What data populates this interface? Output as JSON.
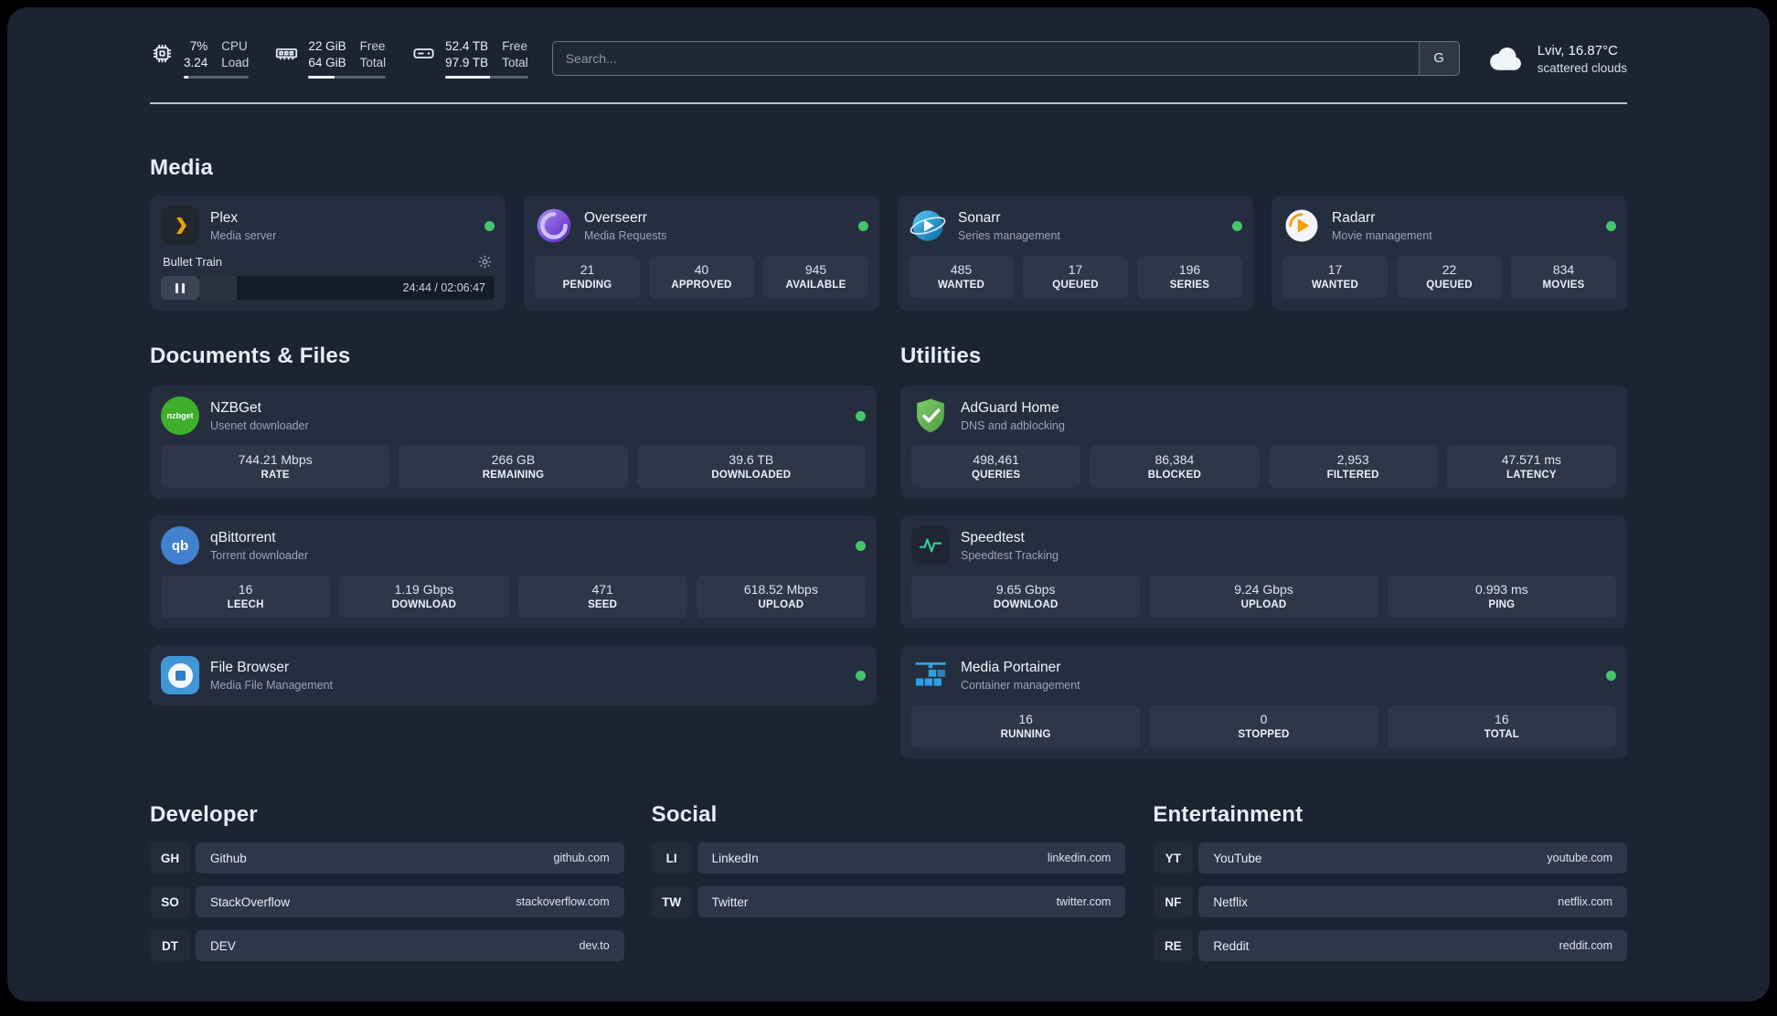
{
  "header": {
    "cpu": {
      "value_top": "7%",
      "value_bottom": "3.24",
      "label_top": "CPU",
      "label_bottom": "Load",
      "bar_percent": 7
    },
    "ram": {
      "value_top": "22 GiB",
      "value_bottom": "64 GiB",
      "label_top": "Free",
      "label_bottom": "Total",
      "bar_percent": 34
    },
    "disk": {
      "value_top": "52.4 TB",
      "value_bottom": "97.9 TB",
      "label_top": "Free",
      "label_bottom": "Total",
      "bar_percent": 54
    },
    "search": {
      "placeholder": "Search...",
      "provider": "G"
    },
    "weather": {
      "location": "Lviv, 16.87°C",
      "condition": "scattered clouds"
    }
  },
  "media": {
    "title": "Media",
    "plex": {
      "name": "Plex",
      "subtitle": "Media server",
      "player": {
        "track": "Bullet Train",
        "time": "24:44 / 02:06:47",
        "progress_percent": 19.5
      }
    },
    "overseerr": {
      "name": "Overseerr",
      "subtitle": "Media Requests",
      "stats": [
        {
          "value": "21",
          "label": "PENDING"
        },
        {
          "value": "40",
          "label": "APPROVED"
        },
        {
          "value": "945",
          "label": "AVAILABLE"
        }
      ]
    },
    "sonarr": {
      "name": "Sonarr",
      "subtitle": "Series management",
      "stats": [
        {
          "value": "485",
          "label": "WANTED"
        },
        {
          "value": "17",
          "label": "QUEUED"
        },
        {
          "value": "196",
          "label": "SERIES"
        }
      ]
    },
    "radarr": {
      "name": "Radarr",
      "subtitle": "Movie management",
      "stats": [
        {
          "value": "17",
          "label": "WANTED"
        },
        {
          "value": "22",
          "label": "QUEUED"
        },
        {
          "value": "834",
          "label": "MOVIES"
        }
      ]
    }
  },
  "documents": {
    "title": "Documents & Files",
    "nzbget": {
      "name": "NZBGet",
      "subtitle": "Usenet downloader",
      "icon_text": "nzbget",
      "stats": [
        {
          "value": "744.21 Mbps",
          "label": "RATE"
        },
        {
          "value": "266 GB",
          "label": "REMAINING"
        },
        {
          "value": "39.6 TB",
          "label": "DOWNLOADED"
        }
      ]
    },
    "qbittorrent": {
      "name": "qBittorrent",
      "subtitle": "Torrent downloader",
      "icon_text": "qb",
      "stats": [
        {
          "value": "16",
          "label": "LEECH"
        },
        {
          "value": "1.19 Gbps",
          "label": "DOWNLOAD"
        },
        {
          "value": "471",
          "label": "SEED"
        },
        {
          "value": "618.52 Mbps",
          "label": "UPLOAD"
        }
      ]
    },
    "filebrowser": {
      "name": "File Browser",
      "subtitle": "Media File Management"
    }
  },
  "utilities": {
    "title": "Utilities",
    "adguard": {
      "name": "AdGuard Home",
      "subtitle": "DNS and adblocking",
      "stats": [
        {
          "value": "498,461",
          "label": "QUERIES"
        },
        {
          "value": "86,384",
          "label": "BLOCKED"
        },
        {
          "value": "2,953",
          "label": "FILTERED"
        },
        {
          "value": "47.571 ms",
          "label": "LATENCY"
        }
      ]
    },
    "speedtest": {
      "name": "Speedtest",
      "subtitle": "Speedtest Tracking",
      "stats": [
        {
          "value": "9.65 Gbps",
          "label": "DOWNLOAD"
        },
        {
          "value": "9.24 Gbps",
          "label": "UPLOAD"
        },
        {
          "value": "0.993 ms",
          "label": "PING"
        }
      ]
    },
    "portainer": {
      "name": "Media Portainer",
      "subtitle": "Container management",
      "stats": [
        {
          "value": "16",
          "label": "RUNNING"
        },
        {
          "value": "0",
          "label": "STOPPED"
        },
        {
          "value": "16",
          "label": "TOTAL"
        }
      ]
    }
  },
  "bookmarks": {
    "developer": {
      "title": "Developer",
      "items": [
        {
          "abbr": "GH",
          "name": "Github",
          "domain": "github.com"
        },
        {
          "abbr": "SO",
          "name": "StackOverflow",
          "domain": "stackoverflow.com"
        },
        {
          "abbr": "DT",
          "name": "DEV",
          "domain": "dev.to"
        }
      ]
    },
    "social": {
      "title": "Social",
      "items": [
        {
          "abbr": "LI",
          "name": "LinkedIn",
          "domain": "linkedin.com"
        },
        {
          "abbr": "TW",
          "name": "Twitter",
          "domain": "twitter.com"
        }
      ]
    },
    "entertainment": {
      "title": "Entertainment",
      "items": [
        {
          "abbr": "YT",
          "name": "YouTube",
          "domain": "youtube.com"
        },
        {
          "abbr": "NF",
          "name": "Netflix",
          "domain": "netflix.com"
        },
        {
          "abbr": "RE",
          "name": "Reddit",
          "domain": "reddit.com"
        }
      ]
    }
  },
  "colors": {
    "page_bg": "#1c2433",
    "card_bg": "#252e3e",
    "stat_bg": "#2d3748",
    "status_green": "#45c46a",
    "plex_gold": "#e5a00d",
    "overseerr_purple": "#7c3aed",
    "sonarr_blue": "#0ea5e9",
    "radarr_orange": "#f59e0b",
    "nzbget_green": "#3fae2a",
    "qbittorrent_blue": "#4281cf",
    "filebrowser_blue": "#4196d8",
    "adguard_green": "#67b279",
    "speedtest_green": "#34d399",
    "portainer_blue": "#2f9fe3"
  }
}
